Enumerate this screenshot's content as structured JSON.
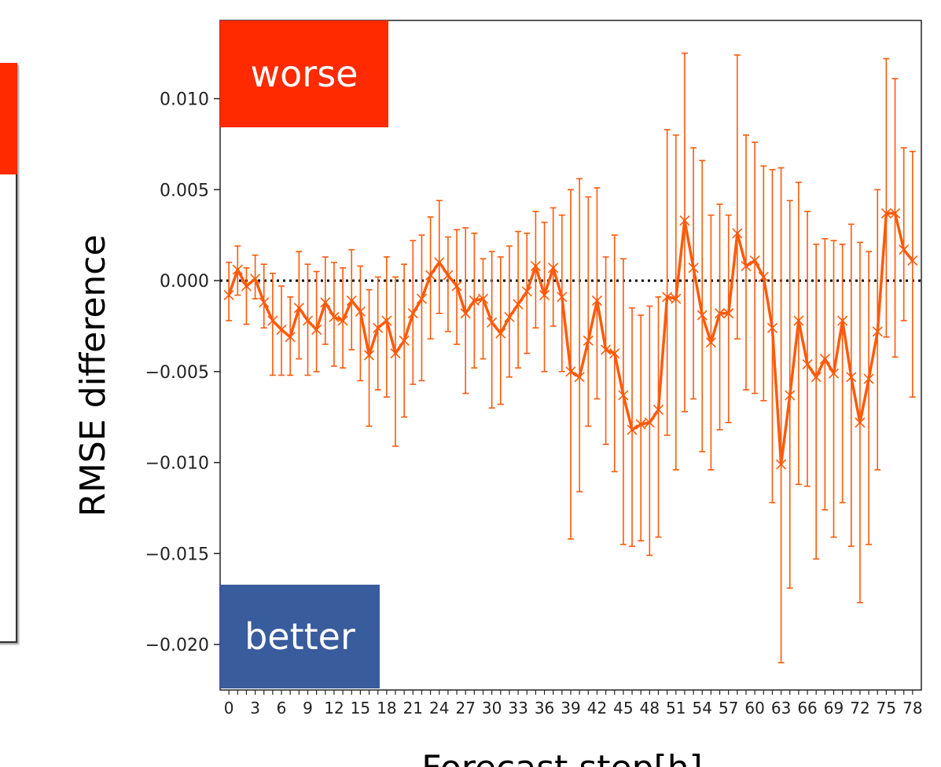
{
  "chart_data": {
    "type": "line",
    "title": "",
    "xlabel": "Forecast step[h]",
    "ylabel": "RMSE difference",
    "x": [
      0,
      1,
      2,
      3,
      4,
      5,
      6,
      7,
      8,
      9,
      10,
      11,
      12,
      13,
      14,
      15,
      16,
      17,
      18,
      19,
      20,
      21,
      22,
      23,
      24,
      25,
      26,
      27,
      28,
      29,
      30,
      31,
      32,
      33,
      34,
      35,
      36,
      37,
      38,
      39,
      40,
      41,
      42,
      43,
      44,
      45,
      46,
      47,
      48,
      49,
      50,
      51,
      52,
      53,
      54,
      55,
      56,
      57,
      58,
      59,
      60,
      61,
      62,
      63,
      64,
      65,
      66,
      67,
      68,
      69,
      70,
      71,
      72,
      73,
      74,
      75,
      76,
      77,
      78
    ],
    "x_tick_labels": [
      "0",
      "3",
      "6",
      "9",
      "12",
      "15",
      "18",
      "21",
      "24",
      "27",
      "30",
      "33",
      "36",
      "39",
      "42",
      "45",
      "48",
      "51",
      "54",
      "57",
      "60",
      "63",
      "66",
      "69",
      "72",
      "75",
      "78"
    ],
    "xlim": [
      -1,
      79
    ],
    "ylim": [
      -0.0225,
      0.0143
    ],
    "y_ticks": [
      0.01,
      0.005,
      0.0,
      -0.005,
      -0.01,
      -0.015,
      -0.02
    ],
    "y_tick_labels": [
      "0.010",
      "0.005",
      "0.000",
      "−0.005",
      "−0.010",
      "−0.015",
      "−0.020"
    ],
    "reference_line": {
      "y": 0.0,
      "style": "dotted",
      "color": "#000000"
    },
    "series": [
      {
        "color": "#ff5a0a",
        "marker": "x",
        "values": [
          -0.0008,
          0.0006,
          -0.0003,
          0.0001,
          -0.0012,
          -0.0022,
          -0.0027,
          -0.0031,
          -0.0015,
          -0.0022,
          -0.0027,
          -0.0012,
          -0.002,
          -0.0022,
          -0.0011,
          -0.0017,
          -0.0041,
          -0.0026,
          -0.0022,
          -0.004,
          -0.0033,
          -0.0018,
          -0.001,
          0.0003,
          0.001,
          0.0003,
          -0.0003,
          -0.0018,
          -0.0011,
          -0.001,
          -0.0023,
          -0.0029,
          -0.002,
          -0.0013,
          -0.0006,
          0.0008,
          -0.0008,
          0.0007,
          -0.0009,
          -0.005,
          -0.0053,
          -0.0033,
          -0.0011,
          -0.0038,
          -0.004,
          -0.0063,
          -0.0082,
          -0.0079,
          -0.0078,
          -0.0071,
          -0.0009,
          -0.001,
          0.0033,
          0.0007,
          -0.0019,
          -0.0034,
          -0.0018,
          -0.0018,
          0.0026,
          0.0008,
          0.0011,
          0.0002,
          -0.0026,
          -0.0101,
          -0.0063,
          -0.0022,
          -0.0046,
          -0.0053,
          -0.0043,
          -0.0051,
          -0.0022,
          -0.0053,
          -0.0078,
          -0.0054,
          -0.0028,
          0.0037,
          0.0037,
          0.0017,
          0.0011
        ],
        "err_low": [
          -0.0022,
          -0.0008,
          -0.0024,
          -0.001,
          -0.0026,
          -0.0052,
          -0.0052,
          -0.0052,
          -0.0043,
          -0.0052,
          -0.005,
          -0.0035,
          -0.0047,
          -0.0048,
          -0.0038,
          -0.0055,
          -0.008,
          -0.006,
          -0.0064,
          -0.0091,
          -0.0075,
          -0.0057,
          -0.0055,
          -0.0032,
          -0.0018,
          -0.0028,
          -0.0035,
          -0.0062,
          -0.0048,
          -0.0043,
          -0.007,
          -0.0068,
          -0.0053,
          -0.0048,
          -0.004,
          -0.0026,
          -0.005,
          -0.0025,
          -0.005,
          -0.0142,
          -0.0116,
          -0.008,
          -0.0065,
          -0.009,
          -0.0105,
          -0.0145,
          -0.0146,
          -0.0143,
          -0.0151,
          -0.0141,
          -0.0085,
          -0.0104,
          -0.0072,
          -0.0065,
          -0.0094,
          -0.0104,
          -0.0082,
          -0.0078,
          -0.0032,
          -0.006,
          -0.0062,
          -0.0066,
          -0.0122,
          -0.021,
          -0.0169,
          -0.0112,
          -0.0113,
          -0.0153,
          -0.0126,
          -0.0141,
          -0.0122,
          -0.0146,
          -0.0177,
          -0.0145,
          -0.0104,
          -0.0031,
          -0.0042,
          -0.0022,
          -0.0064
        ],
        "err_high": [
          0.001,
          0.0019,
          0.0007,
          0.0014,
          0.0009,
          0.0004,
          -0.0003,
          -0.0009,
          0.0016,
          0.0009,
          0.0005,
          0.0013,
          0.001,
          0.0007,
          0.0017,
          0.0008,
          -0.0005,
          0.0002,
          0.0013,
          0.0002,
          0.0009,
          0.0022,
          0.0025,
          0.0035,
          0.0044,
          0.0024,
          0.0028,
          0.0029,
          0.0026,
          0.0012,
          0.0016,
          0.0013,
          0.0019,
          0.0027,
          0.0026,
          0.0038,
          0.0032,
          0.004,
          0.0036,
          0.005,
          0.0056,
          0.0046,
          0.0051,
          0.0013,
          0.0025,
          0.0012,
          -0.0015,
          -0.0019,
          -0.0014,
          -0.0009,
          0.0083,
          0.008,
          0.0125,
          0.0073,
          0.0066,
          0.0036,
          0.0042,
          0.0036,
          0.0124,
          0.008,
          0.0076,
          0.0063,
          0.0061,
          0.0062,
          0.0044,
          0.0054,
          0.0038,
          0.002,
          0.0023,
          0.0022,
          0.002,
          0.0031,
          0.0021,
          0.0016,
          0.005,
          0.0122,
          0.0111,
          0.0073,
          0.0071
        ]
      }
    ],
    "grid": false,
    "annotations": [
      {
        "text": "worse",
        "background": "#ff2a00",
        "text_color": "#ffffff",
        "placement": "top-left"
      },
      {
        "text": "better",
        "background": "#385c9c",
        "text_color": "#ffffff",
        "placement": "bottom-left"
      }
    ]
  }
}
